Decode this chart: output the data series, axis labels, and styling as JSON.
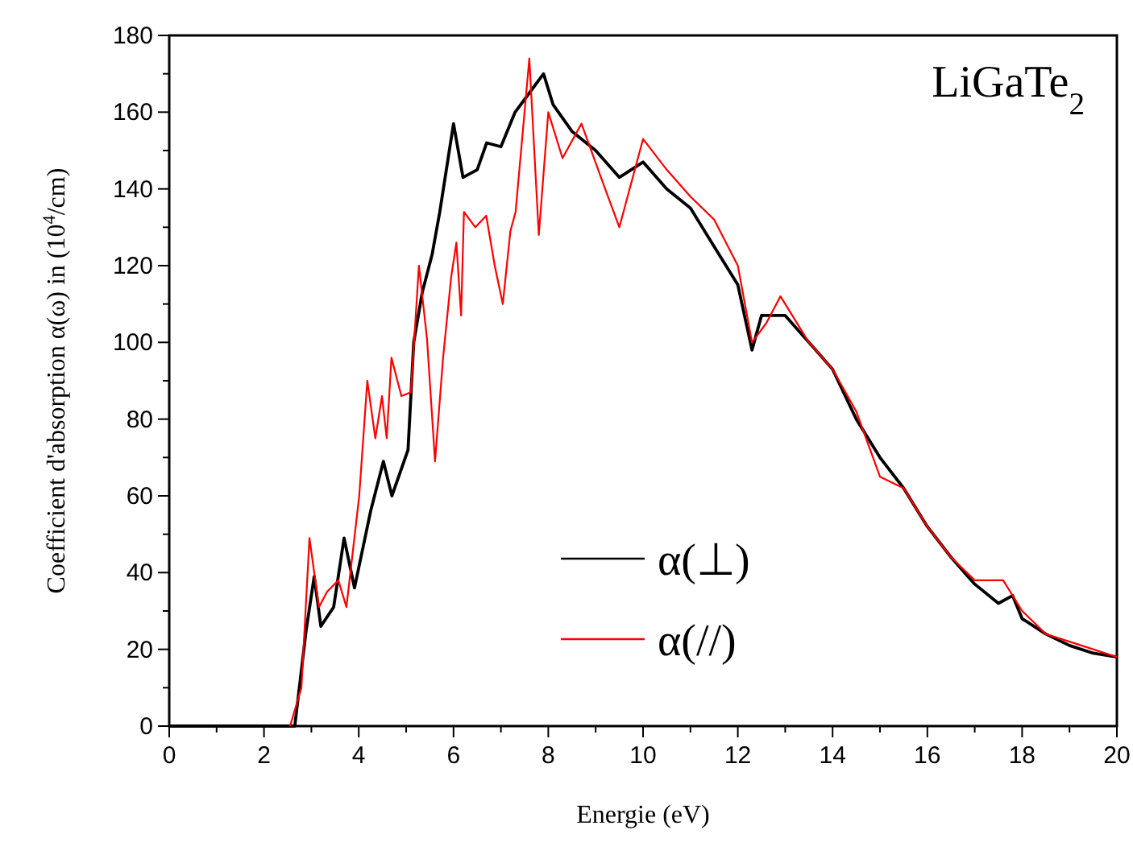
{
  "chart_data": {
    "type": "line",
    "title": "LiGaTe$_{2}$",
    "xlabel": "Energie (eV)",
    "ylabel": "Coefficient d'absorption α(ω) in (10$^{4}$/cm)",
    "xlim": [
      0,
      20
    ],
    "ylim": [
      0,
      180
    ],
    "xticks": [
      0,
      {
        "value": 1,
        "label": null
      },
      2,
      {
        "value": 3,
        "label": null
      },
      4,
      {
        "value": 5,
        "label": null
      },
      6,
      {
        "value": 7,
        "label": null
      },
      8,
      {
        "value": 9,
        "label": null
      },
      10,
      {
        "value": 11,
        "label": null
      },
      12,
      {
        "value": 13,
        "label": null
      },
      14,
      {
        "value": 15,
        "label": null
      },
      16,
      {
        "value": 17,
        "label": null
      },
      18,
      {
        "value": 19,
        "label": null
      },
      20
    ],
    "yticks": [
      0,
      {
        "value": 10,
        "label": null
      },
      20,
      {
        "value": 30,
        "label": null
      },
      40,
      {
        "value": 50,
        "label": null
      },
      60,
      {
        "value": 70,
        "label": null
      },
      80,
      {
        "value": 90,
        "label": null
      },
      100,
      {
        "value": 110,
        "label": null
      },
      120,
      {
        "value": 130,
        "label": null
      },
      140,
      {
        "value": 150,
        "label": null
      },
      160,
      {
        "value": 170,
        "label": null
      },
      180
    ],
    "grid": false,
    "legend": "bottom",
    "marker": "none",
    "line_style": "solid",
    "series": [
      {
        "name": "α(⊥)",
        "color": "#000000",
        "x": [
          0,
          2.65,
          2.89,
          3.06,
          3.2,
          3.47,
          3.69,
          3.91,
          4.25,
          4.52,
          4.7,
          5.04,
          5.16,
          5.34,
          5.55,
          5.71,
          6.0,
          6.2,
          6.5,
          6.7,
          7.0,
          7.3,
          7.6,
          7.9,
          8.1,
          8.5,
          9.0,
          9.5,
          10.0,
          10.5,
          11.0,
          11.5,
          12.0,
          12.3,
          12.5,
          13.0,
          13.5,
          14.0,
          14.5,
          15.0,
          15.5,
          16.0,
          16.5,
          17.0,
          17.5,
          17.8,
          18.0,
          18.5,
          19.0,
          19.5,
          20.0
        ],
        "values": [
          0,
          0,
          25,
          39,
          26,
          31,
          49,
          36,
          56,
          69,
          60,
          72,
          100,
          113,
          123,
          134,
          157,
          143,
          145,
          152,
          151,
          160,
          165,
          170,
          162,
          155,
          150,
          143,
          147,
          140,
          135,
          125,
          115,
          98,
          107,
          107,
          100,
          93,
          80,
          70,
          62,
          52,
          44,
          37,
          32,
          34,
          28,
          24,
          21,
          19,
          18
        ]
      },
      {
        "name": "α(//)",
        "color": "#ff0000",
        "x": [
          2.55,
          2.79,
          2.96,
          3.16,
          3.33,
          3.57,
          3.74,
          4.01,
          4.18,
          4.35,
          4.49,
          4.59,
          4.69,
          4.9,
          5.1,
          5.27,
          5.44,
          5.61,
          5.78,
          5.95,
          6.06,
          6.16,
          6.22,
          6.46,
          6.69,
          6.87,
          7.04,
          7.2,
          7.31,
          7.6,
          7.8,
          8.0,
          8.3,
          8.7,
          9.2,
          9.5,
          10.0,
          10.5,
          11.0,
          11.5,
          12.0,
          12.3,
          12.6,
          12.9,
          13.5,
          14.0,
          14.5,
          15.0,
          15.5,
          16.0,
          16.5,
          17.0,
          17.6,
          18.0,
          18.5,
          19.0,
          19.5,
          20.0
        ],
        "values": [
          0,
          10,
          49,
          31,
          35,
          38,
          31,
          60,
          90,
          75,
          86,
          75,
          96,
          86,
          87,
          120,
          101,
          69,
          96,
          117,
          126,
          107,
          134,
          130,
          133,
          120,
          110,
          129,
          134,
          174,
          128,
          160,
          148,
          157,
          140,
          130,
          153,
          145,
          138,
          132,
          120,
          100,
          105,
          112,
          100,
          93,
          82,
          65,
          62,
          52,
          44,
          38,
          38,
          30,
          24,
          22,
          20,
          18
        ]
      }
    ]
  }
}
